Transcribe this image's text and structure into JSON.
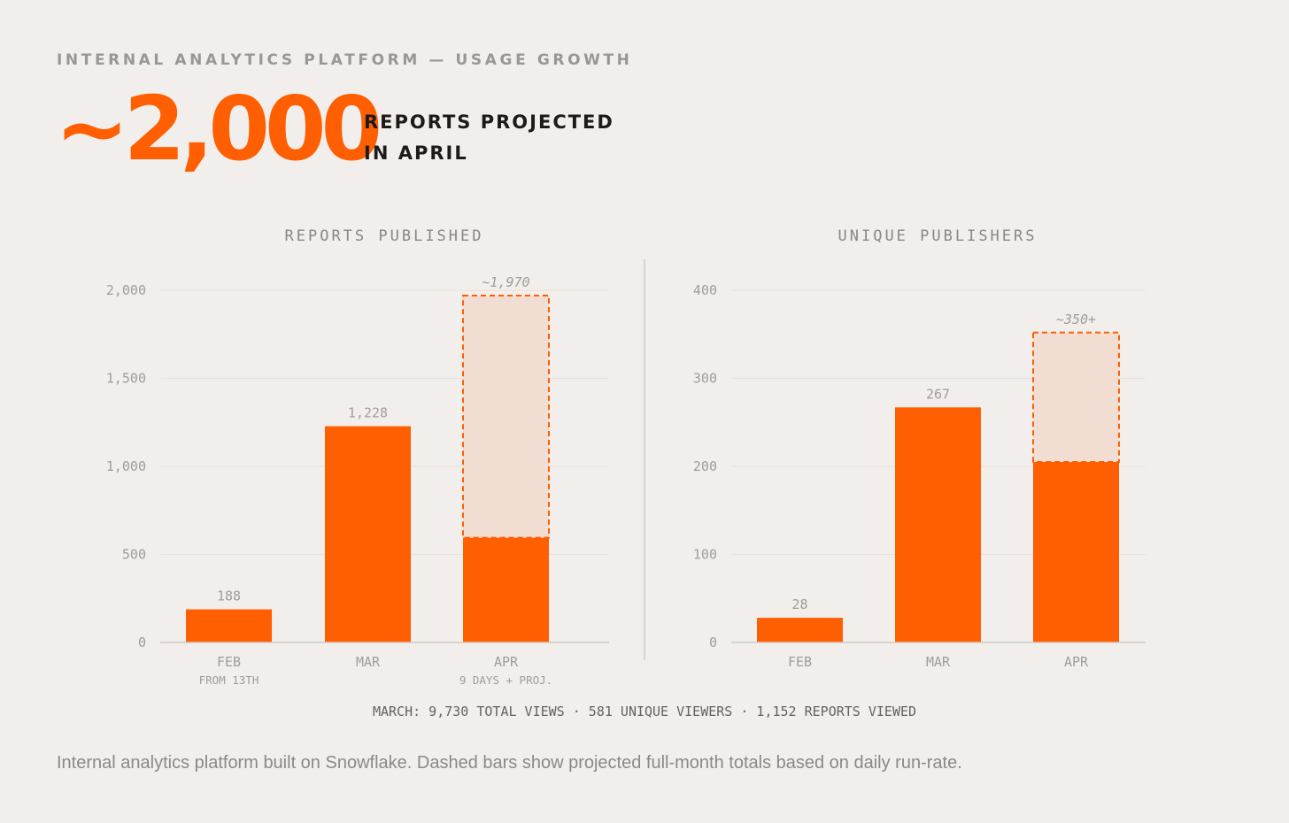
{
  "header": {
    "eyebrow": "INTERNAL ANALYTICS PLATFORM — USAGE GROWTH",
    "hero_value": "~2,000",
    "hero_label_line1": "REPORTS PROJECTED",
    "hero_label_line2": "IN APRIL"
  },
  "chart_data": [
    {
      "type": "bar",
      "title": "REPORTS PUBLISHED",
      "categories": [
        "FEB",
        "MAR",
        "APR"
      ],
      "sublabels": [
        "FROM 13TH",
        "",
        "9 DAYS + PROJ."
      ],
      "values": [
        188,
        1228,
        595
      ],
      "value_labels": [
        "188",
        "1,228",
        ""
      ],
      "projected": [
        null,
        null,
        1970
      ],
      "projected_labels": [
        "",
        "",
        "~1,970"
      ],
      "yticks": [
        0,
        500,
        1000,
        1500,
        2000
      ],
      "ytick_labels": [
        "0",
        "500",
        "1,000",
        "1,500",
        "2,000"
      ],
      "ylim": [
        0,
        2000
      ],
      "grid": true
    },
    {
      "type": "bar",
      "title": "UNIQUE PUBLISHERS",
      "categories": [
        "FEB",
        "MAR",
        "APR"
      ],
      "sublabels": [
        "",
        "",
        ""
      ],
      "values": [
        28,
        267,
        205
      ],
      "value_labels": [
        "28",
        "267",
        ""
      ],
      "projected": [
        null,
        null,
        352
      ],
      "projected_labels": [
        "",
        "",
        "~350+"
      ],
      "yticks": [
        0,
        100,
        200,
        300,
        400
      ],
      "ytick_labels": [
        "0",
        "100",
        "200",
        "300",
        "400"
      ],
      "ylim": [
        0,
        400
      ],
      "grid": true
    }
  ],
  "footer": {
    "stats": "MARCH: 9,730 TOTAL VIEWS · 581 UNIQUE VIEWERS · 1,152 REPORTS VIEWED",
    "caption": "Internal analytics platform built on Snowflake. Dashed bars show projected full-month totals based on daily run-rate."
  },
  "colors": {
    "accent": "#ff5f00",
    "projected_fill": "#f2ddd2",
    "axis_text": "#a09c99",
    "grid": "#e6e2de",
    "axis_line": "#cfcbc7"
  }
}
